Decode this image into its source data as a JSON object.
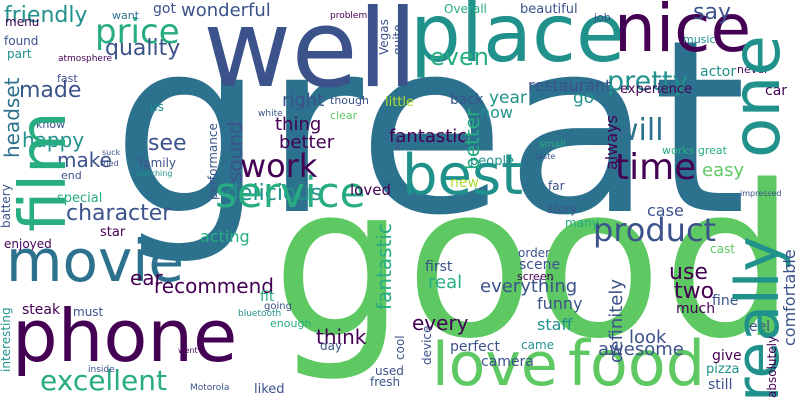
{
  "palette": {
    "purple": "#440154",
    "indigo": "#3b528b",
    "teal": "#21918c",
    "blueteal": "#2c728e",
    "green": "#5ec962",
    "lime": "#addc30",
    "yellow": "#fde725",
    "seagreen": "#27ad81"
  },
  "words": [
    "great",
    "good",
    "well",
    "place",
    "nice",
    "film",
    "movie",
    "phone",
    "one",
    "really",
    "love",
    "food",
    "best",
    "service",
    "excellent",
    "time",
    "price",
    "quality",
    "product",
    "will",
    "work",
    "pretty",
    "sound",
    "amazing",
    "character",
    "delicious",
    "acting",
    "recommend",
    "think",
    "fantastic",
    "everything",
    "definitely",
    "headset",
    "friendly",
    "happy",
    "see",
    "lot",
    "way",
    "made",
    "make",
    "right",
    "thing",
    "better",
    "year",
    "even",
    "restaurant",
    "go",
    "now",
    "say",
    "experience",
    "actor",
    "car",
    "easy",
    "case",
    "use",
    "two",
    "look",
    "awesome",
    "perfect",
    "staff",
    "funny",
    "came",
    "still",
    "give",
    "feel",
    "fine",
    "cast",
    "comfortable",
    "absolutely",
    "pizza",
    "much",
    "fresh",
    "used",
    "cool",
    "device",
    "camera",
    "screen",
    "scene",
    "order",
    "every",
    "first",
    "real",
    "fit",
    "must",
    "ear",
    "star",
    "new",
    "loved",
    "always",
    "wonderful",
    "got",
    "want",
    "menu",
    "found",
    "part",
    "fast",
    "atmosphere",
    "beautiful",
    "music",
    "never",
    "Vegas",
    "quite",
    "Overall",
    "job",
    "problem",
    "clear",
    "though",
    "back",
    "little",
    "people",
    "us",
    "know",
    "end",
    "special",
    "family",
    "watching",
    "performance",
    "battery",
    "steak",
    "interesting",
    "day",
    "going",
    "enough",
    "liked",
    "Motorola",
    "inside",
    "went",
    "story",
    "many",
    "far",
    "small",
    "taste",
    "side",
    "white",
    "enjoyed",
    "impressed",
    "works great",
    "bluetooth",
    "tried",
    "suck"
  ]
}
